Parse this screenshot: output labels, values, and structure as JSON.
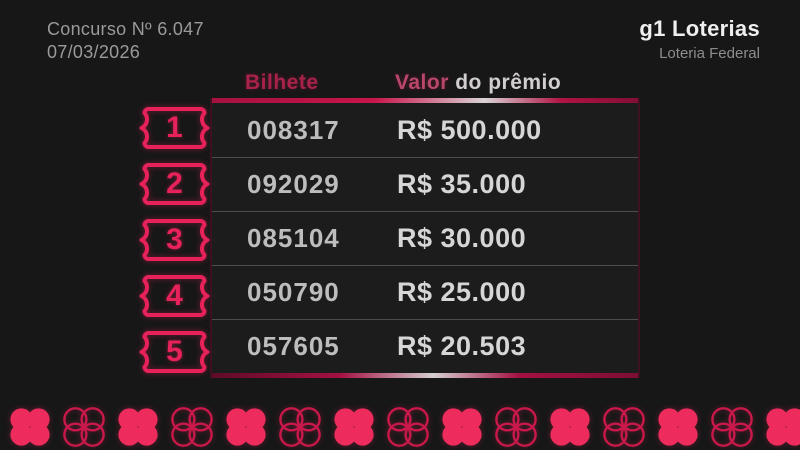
{
  "page": {
    "background": "#171717",
    "accent": "#e7215a"
  },
  "header": {
    "contest_label": "Concurso Nº 6.047",
    "date": "07/03/2026",
    "brand": "g1 Loterias",
    "brand_sub": "Loteria Federal"
  },
  "table": {
    "col_ticket": "Bilhete",
    "col_value_accent": "Valor",
    "col_value_rest": " do prêmio",
    "rows": [
      {
        "rank": "1",
        "ticket": "008317",
        "prize": "R$ 500.000"
      },
      {
        "rank": "2",
        "ticket": "092029",
        "prize": "R$ 35.000"
      },
      {
        "rank": "3",
        "ticket": "085104",
        "prize": "R$ 30.000"
      },
      {
        "rank": "4",
        "ticket": "050790",
        "prize": "R$ 25.000"
      },
      {
        "rank": "5",
        "ticket": "057605",
        "prize": "R$ 20.503"
      }
    ]
  },
  "decor": {
    "clover_count": 15,
    "filled_color": "#ee2b5d",
    "outline_color": "#c9184a"
  }
}
